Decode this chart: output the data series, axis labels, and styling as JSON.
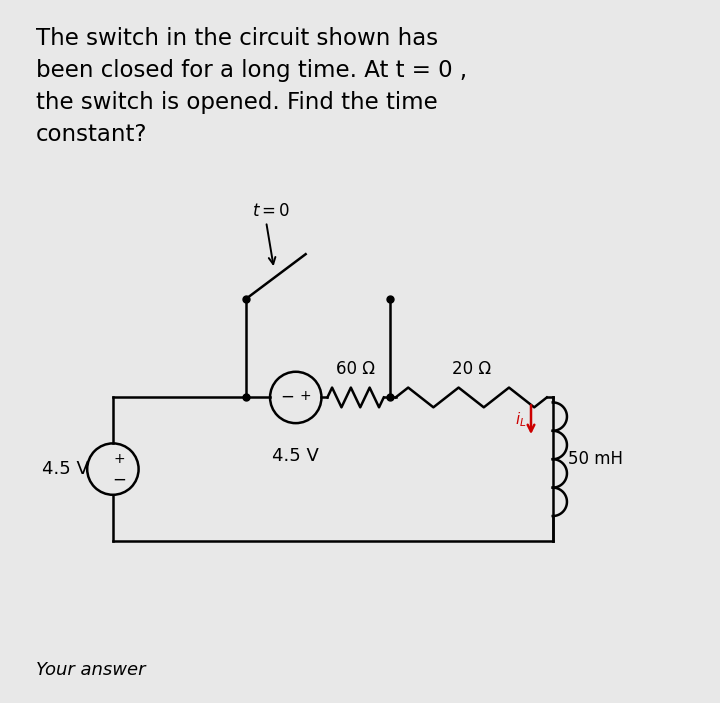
{
  "title_text": "The switch in the circuit shown has\nbeen closed for a long time. At t = 0 ,\nthe switch is opened. Find the time\nconstant?",
  "background_color": "#e8e8e8",
  "text_color": "#000000",
  "title_fontsize": 16.5,
  "circuit": {
    "left_source_label": "4.5 V",
    "inner_source_label": "4.5 V",
    "r1_label": "60 Ω",
    "r2_label": "20 Ω",
    "inductor_label": "50 mH",
    "switch_label": "t = 0",
    "il_label": "i_L"
  },
  "your_answer_text": "Your answer"
}
